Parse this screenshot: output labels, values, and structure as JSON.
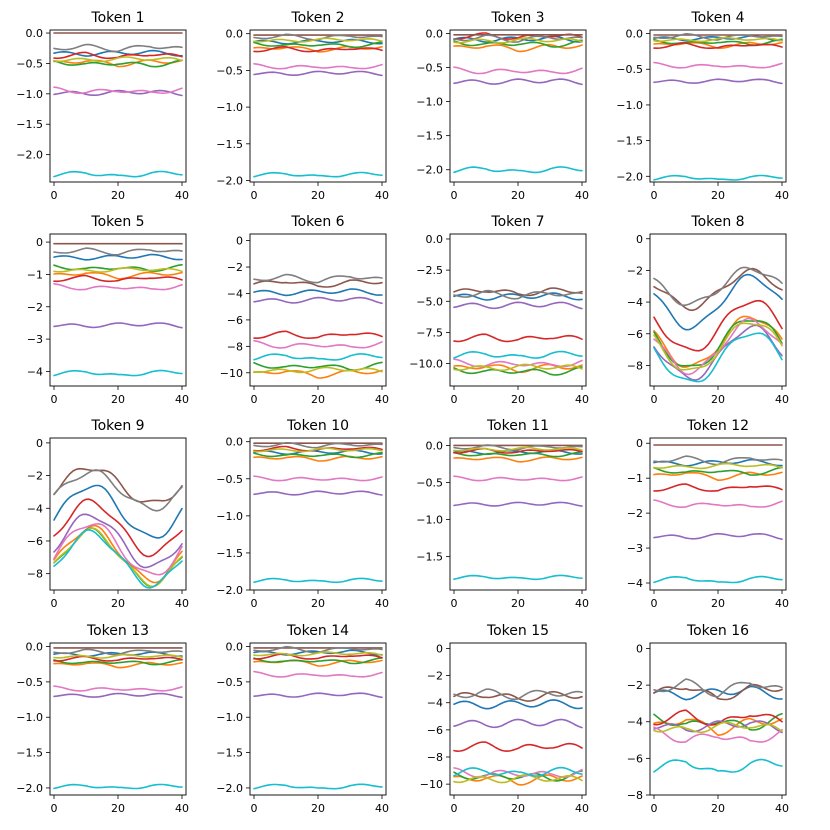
{
  "chart_data": {
    "type": "line",
    "x_range": [
      0,
      40
    ],
    "xticks": [
      0,
      20,
      40
    ],
    "palette": [
      "#1f77b4",
      "#ff7f0e",
      "#2ca02c",
      "#d62728",
      "#9467bd",
      "#8c564b",
      "#e377c2",
      "#7f7f7f",
      "#bcbd22",
      "#17becf"
    ],
    "panels": [
      {
        "title": "Token 1",
        "ylim": [
          -2.45,
          0.05
        ],
        "yticks": [
          0,
          -0.5,
          -1,
          -1.5,
          -2
        ],
        "yticklabels": [
          "0.0",
          "−0.5",
          "−1.0",
          "−1.5",
          "−2.0"
        ],
        "levels": [
          -0.35,
          -0.48,
          -0.5,
          -0.38,
          -1.0,
          0.0,
          -0.95,
          -0.25,
          -0.45,
          -2.32
        ],
        "amp": 0.06,
        "ripple": 0.03
      },
      {
        "title": "Token 2",
        "ylim": [
          -2.02,
          0.05
        ],
        "yticks": [
          0,
          -0.5,
          -1,
          -1.5,
          -2
        ],
        "yticklabels": [
          "0.0",
          "−0.5",
          "−1.0",
          "−1.5",
          "−2.0"
        ],
        "levels": [
          -0.12,
          -0.2,
          -0.15,
          -0.22,
          -0.55,
          -0.02,
          -0.45,
          -0.05,
          -0.1,
          -1.92
        ],
        "amp": 0.04,
        "ripple": 0.02
      },
      {
        "title": "Token 3",
        "ylim": [
          -2.18,
          0.05
        ],
        "yticks": [
          0,
          -0.5,
          -1,
          -1.5,
          -2
        ],
        "yticklabels": [
          "0.0",
          "−0.5",
          "−1.0",
          "−1.5",
          "−2.0"
        ],
        "levels": [
          -0.1,
          -0.2,
          -0.15,
          -0.05,
          -0.72,
          -0.02,
          -0.55,
          -0.08,
          -0.12,
          -2.0
        ],
        "amp": 0.05,
        "ripple": 0.03
      },
      {
        "title": "Token 4",
        "ylim": [
          -2.08,
          0.05
        ],
        "yticks": [
          0,
          -0.5,
          -1,
          -1.5,
          -2
        ],
        "yticklabels": [
          "0.0",
          "−0.5",
          "−1.0",
          "−1.5",
          "−2.0"
        ],
        "levels": [
          -0.08,
          -0.15,
          -0.12,
          -0.18,
          -0.68,
          -0.02,
          -0.45,
          -0.05,
          -0.1,
          -2.02
        ],
        "amp": 0.05,
        "ripple": 0.02
      },
      {
        "title": "Token 5",
        "ylim": [
          -4.45,
          0.25
        ],
        "yticks": [
          0,
          -1,
          -2,
          -3,
          -4
        ],
        "yticklabels": [
          "0",
          "−1",
          "−2",
          "−3",
          "−4"
        ],
        "levels": [
          -0.5,
          -1.0,
          -0.8,
          -1.15,
          -2.6,
          -0.05,
          -1.4,
          -0.3,
          -0.9,
          -4.05
        ],
        "amp": 0.12,
        "ripple": 0.05
      },
      {
        "title": "Token 6",
        "ylim": [
          -11.0,
          0.5
        ],
        "yticks": [
          0,
          -2,
          -4,
          -6,
          -8,
          -10
        ],
        "yticklabels": [
          "0",
          "−2",
          "−4",
          "−6",
          "−8",
          "−10"
        ],
        "levels": [
          -4.0,
          -10.0,
          -9.5,
          -7.2,
          -4.6,
          -3.2,
          -7.9,
          -2.9,
          -9.9,
          -8.8
        ],
        "amp": 0.35,
        "ripple": 0.15
      },
      {
        "title": "Token 7",
        "ylim": [
          -11.8,
          0.4
        ],
        "yticks": [
          0,
          -2.5,
          -5,
          -7.5,
          -10
        ],
        "yticklabels": [
          "0.0",
          "−2.5",
          "−5.0",
          "−7.5",
          "−10.0"
        ],
        "levels": [
          -4.7,
          -10.3,
          -10.6,
          -8.0,
          -5.4,
          -4.2,
          -10.0,
          -4.5,
          -10.4,
          -9.3
        ],
        "amp": 0.3,
        "ripple": 0.2
      },
      {
        "title": "Token 8",
        "ylim": [
          -9.3,
          0.3
        ],
        "yticks": [
          0,
          -2,
          -4,
          -6,
          -8
        ],
        "yticklabels": [
          "0",
          "−2",
          "−4",
          "−6",
          "−8"
        ],
        "levels": [
          -4.0,
          -6.5,
          -6.6,
          -5.5,
          -7.2,
          -3.2,
          -6.8,
          -3.0,
          -6.8,
          -7.5
        ],
        "amp": 1.6,
        "ripple": 0.2
      },
      {
        "title": "Token 9",
        "ylim": [
          -9.0,
          0.3
        ],
        "yticks": [
          0,
          -2,
          -4,
          -6,
          -8
        ],
        "yticklabels": [
          "0",
          "−2",
          "−4",
          "−6",
          "−8"
        ],
        "levels": [
          -4.2,
          -6.8,
          -7.0,
          -5.2,
          -6.0,
          -2.6,
          -6.5,
          -2.9,
          -7.0,
          -7.1
        ],
        "amp": 1.6,
        "ripple": 0.2
      },
      {
        "title": "Token 10",
        "ylim": [
          -2.0,
          0.05
        ],
        "yticks": [
          0,
          -0.5,
          -1,
          -1.5,
          -2
        ],
        "yticklabels": [
          "0.0",
          "−0.5",
          "−1.0",
          "−1.5",
          "−2.0"
        ],
        "levels": [
          -0.15,
          -0.22,
          -0.18,
          -0.1,
          -0.7,
          -0.02,
          -0.5,
          -0.05,
          -0.12,
          -1.87
        ],
        "amp": 0.03,
        "ripple": 0.02
      },
      {
        "title": "Token 11",
        "ylim": [
          -1.95,
          0.1
        ],
        "yticks": [
          0,
          -0.5,
          -1,
          -1.5
        ],
        "yticklabels": [
          "0.0",
          "−0.5",
          "−1.0",
          "−1.5"
        ],
        "levels": [
          -0.1,
          -0.18,
          -0.12,
          -0.08,
          -0.8,
          0.0,
          -0.45,
          -0.03,
          -0.06,
          -1.78
        ],
        "amp": 0.03,
        "ripple": 0.02
      },
      {
        "title": "Token 12",
        "ylim": [
          -4.2,
          0.15
        ],
        "yticks": [
          0,
          -1,
          -2,
          -3,
          -4
        ],
        "yticklabels": [
          "0",
          "−1",
          "−2",
          "−3",
          "−4"
        ],
        "levels": [
          -0.6,
          -0.9,
          -0.8,
          -1.3,
          -2.7,
          -0.05,
          -1.75,
          -0.5,
          -0.7,
          -3.9
        ],
        "amp": 0.15,
        "ripple": 0.05
      },
      {
        "title": "Token 13",
        "ylim": [
          -2.1,
          0.05
        ],
        "yticks": [
          0,
          -0.5,
          -1,
          -1.5,
          -2
        ],
        "yticklabels": [
          "0.0",
          "−0.5",
          "−1.0",
          "−1.5",
          "−2.0"
        ],
        "levels": [
          -0.12,
          -0.25,
          -0.22,
          -0.18,
          -0.7,
          -0.02,
          -0.6,
          -0.08,
          -0.15,
          -1.98
        ],
        "amp": 0.04,
        "ripple": 0.02
      },
      {
        "title": "Token 14",
        "ylim": [
          -2.1,
          0.05
        ],
        "yticks": [
          0,
          -0.5,
          -1,
          -1.5,
          -2
        ],
        "yticklabels": [
          "0.0",
          "−0.5",
          "−1.0",
          "−1.5",
          "−2.0"
        ],
        "levels": [
          -0.1,
          -0.22,
          -0.2,
          -0.15,
          -0.7,
          -0.02,
          -0.4,
          -0.05,
          -0.12,
          -1.98
        ],
        "amp": 0.05,
        "ripple": 0.02
      },
      {
        "title": "Token 15",
        "ylim": [
          -10.8,
          0.4
        ],
        "yticks": [
          0,
          -2,
          -4,
          -6,
          -8,
          -10
        ],
        "yticklabels": [
          "0",
          "−2",
          "−4",
          "−6",
          "−8",
          "−10"
        ],
        "levels": [
          -4.2,
          -9.6,
          -9.4,
          -7.3,
          -5.6,
          -3.5,
          -9.2,
          -3.4,
          -9.7,
          -9.1
        ],
        "amp": 0.3,
        "ripple": 0.25
      },
      {
        "title": "Token 16",
        "ylim": [
          -8.0,
          0.3
        ],
        "yticks": [
          0,
          -2,
          -4,
          -6,
          -8
        ],
        "yticklabels": [
          "0",
          "−2",
          "−4",
          "−6",
          "−8"
        ],
        "levels": [
          -2.6,
          -4.1,
          -4.0,
          -3.9,
          -4.4,
          -2.3,
          -4.8,
          -2.2,
          -4.5,
          -6.4
        ],
        "amp": 0.6,
        "ripple": 0.2
      }
    ]
  }
}
